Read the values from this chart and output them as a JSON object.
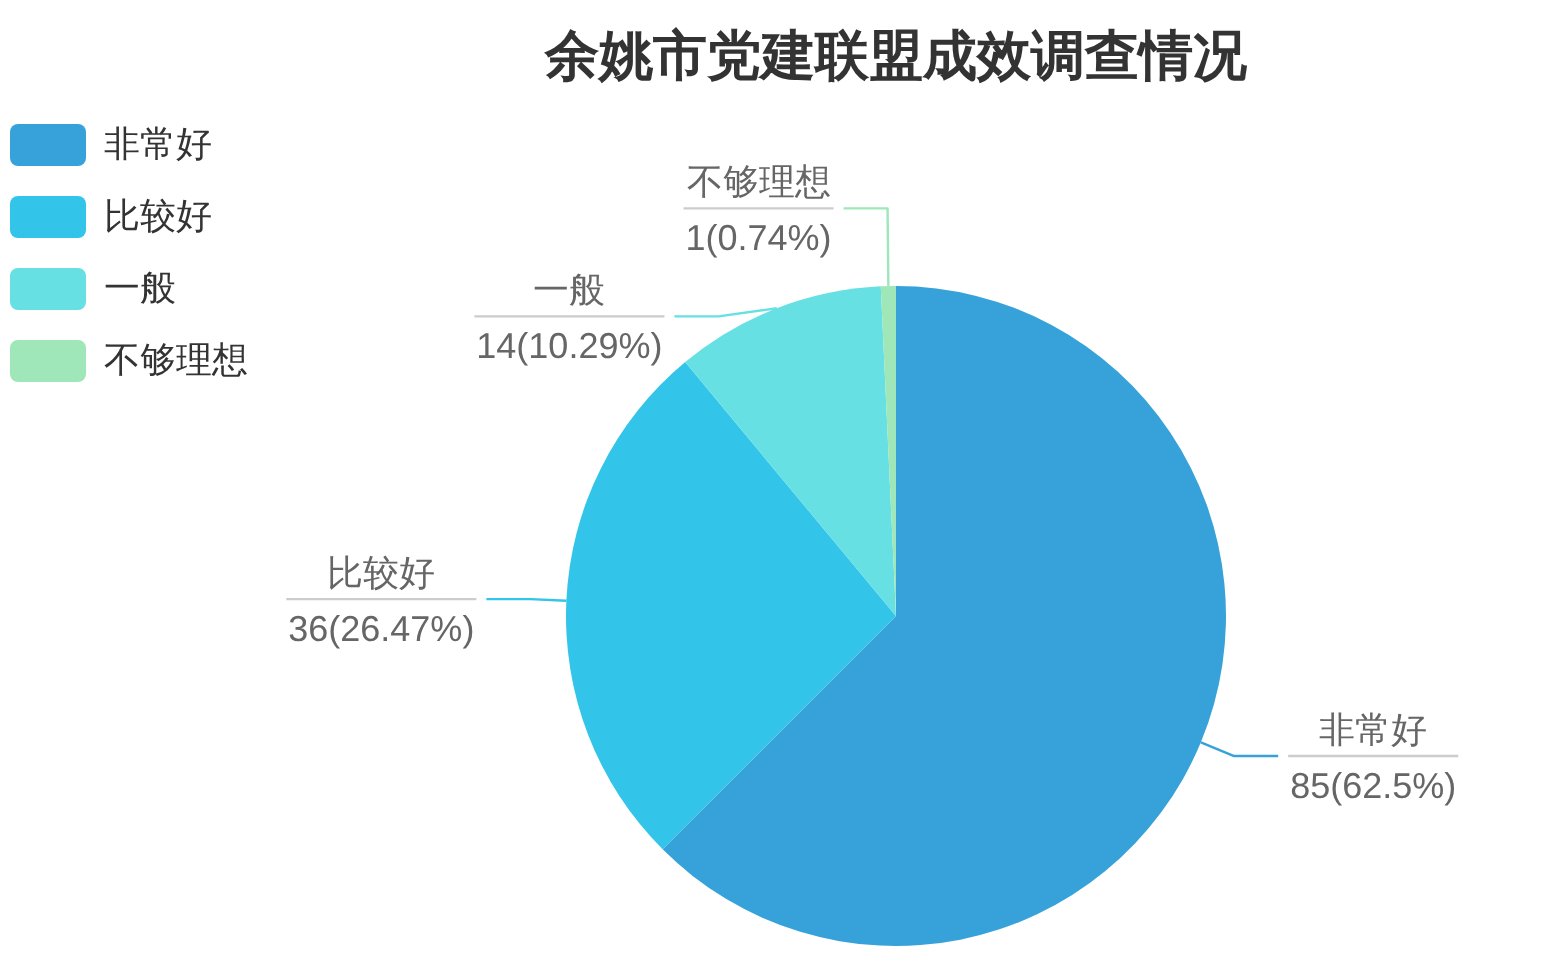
{
  "chart_data": {
    "type": "pie",
    "title": "余姚市党建联盟成效调查情况",
    "categories": [
      "非常好",
      "比较好",
      "一般",
      "不够理想"
    ],
    "values": [
      85,
      36,
      14,
      1
    ],
    "colors": [
      "#37a2da",
      "#32c5e9",
      "#67e0e3",
      "#9fe6b8"
    ],
    "value_labels": [
      "85(62.5%)",
      "36(26.47%)",
      "14(10.29%)",
      "1(0.74%)"
    ],
    "legend": "top left"
  }
}
